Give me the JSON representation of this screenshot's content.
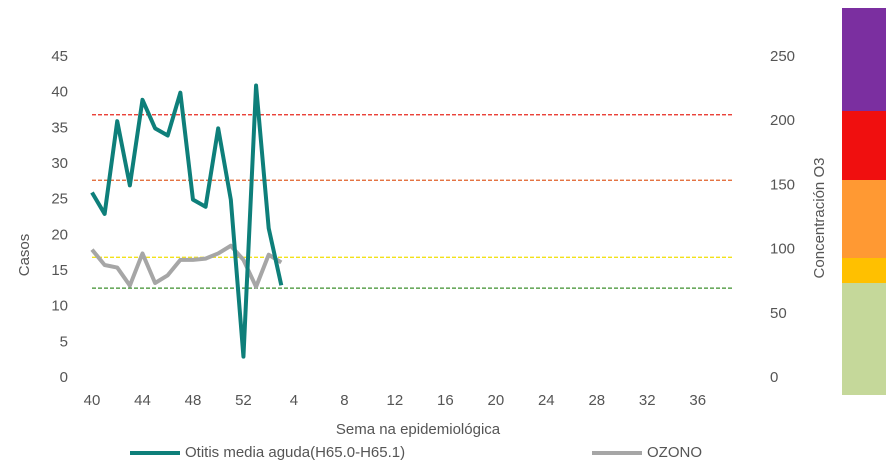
{
  "chart_data": {
    "type": "line",
    "categories": [
      40,
      null,
      null,
      null,
      44,
      null,
      null,
      null,
      48,
      null,
      null,
      null,
      52,
      null,
      null,
      null,
      4,
      null,
      null,
      null,
      8,
      null,
      null,
      null,
      12,
      null,
      null,
      null,
      16,
      null,
      null,
      null,
      20,
      null,
      null,
      null,
      24,
      null,
      null,
      null,
      28,
      null,
      null,
      null,
      32,
      null,
      null,
      null,
      36,
      null,
      null,
      null
    ],
    "series": [
      {
        "name": "Otitis media aguda(H65.0-H65.1)",
        "color": "#0e7f7a",
        "values": [
          26,
          23,
          36,
          27,
          39,
          35,
          34,
          40,
          25,
          24,
          35,
          25,
          3,
          41,
          21,
          13,
          null,
          null,
          null,
          null,
          null,
          null,
          null,
          null,
          null,
          null,
          null,
          null,
          null,
          null,
          null,
          null,
          null,
          null,
          null,
          null,
          null,
          null,
          null,
          null,
          null,
          null,
          null,
          null,
          null,
          null,
          null,
          null,
          null,
          null,
          null,
          null
        ]
      },
      {
        "name": "OZONO",
        "color": "#a6a6a6",
        "axis": "y2",
        "values": [
          100,
          88,
          86,
          72,
          97,
          74,
          80,
          92,
          92,
          93,
          97,
          103,
          92,
          71,
          96,
          90,
          null,
          null,
          null,
          null,
          null,
          null,
          null,
          null,
          null,
          null,
          null,
          null,
          null,
          null,
          null,
          null,
          null,
          null,
          null,
          null,
          null,
          null,
          null,
          null,
          null,
          null,
          null,
          null,
          null,
          null,
          null,
          null,
          null,
          null,
          null,
          null
        ]
      }
    ],
    "reference_lines": [
      {
        "value": 205,
        "color": "#e8281e",
        "axis": "y2"
      },
      {
        "value": 154,
        "color": "#e0602a",
        "axis": "y2"
      },
      {
        "value": 94,
        "color": "#f2e21a",
        "axis": "y2"
      },
      {
        "value": 70,
        "color": "#3c8f2c",
        "axis": "y2"
      }
    ],
    "ylabel": "Casos",
    "y2label": "Concentración O3",
    "xlabel": "Sema na epidemiológica",
    "ylim": [
      0,
      45
    ],
    "yticks": [
      0,
      5,
      10,
      15,
      20,
      25,
      30,
      35,
      40,
      45
    ],
    "y2lim": [
      0,
      250
    ],
    "y2ticks": [
      0,
      50,
      100,
      150,
      200,
      250
    ]
  }
}
